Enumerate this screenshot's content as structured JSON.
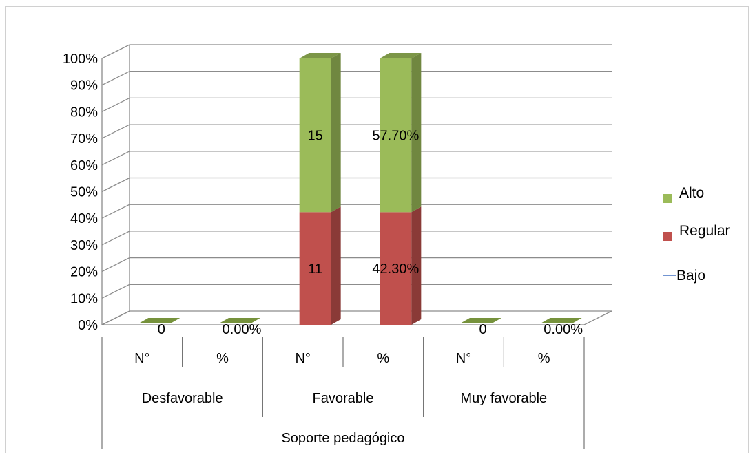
{
  "chart_data": {
    "type": "bar",
    "stacked": true,
    "percent_stacked": true,
    "three_d": true,
    "title": "",
    "xlabel": "",
    "ylabel": "",
    "ylim": [
      0,
      100
    ],
    "y_ticks": [
      "0%",
      "10%",
      "20%",
      "30%",
      "40%",
      "50%",
      "60%",
      "70%",
      "80%",
      "90%",
      "100%"
    ],
    "grid": true,
    "legend_position": "right",
    "categories": [
      "N°",
      "%",
      "N°",
      "%",
      "N°",
      "%"
    ],
    "category_groups": [
      "Desfavorable",
      "Favorable",
      "Muy favorable"
    ],
    "outer_group": "Soporte pedagógico",
    "series": [
      {
        "name": "Bajo",
        "values": [
          0,
          0,
          0,
          0,
          0,
          0
        ],
        "color": "#4472c4"
      },
      {
        "name": "Regular",
        "values": [
          0,
          0,
          11,
          42.3,
          0,
          0
        ],
        "color": "#c0504d",
        "labels": [
          "",
          "",
          "11",
          "42.30%",
          "",
          ""
        ]
      },
      {
        "name": "Alto",
        "values": [
          0,
          0,
          15,
          57.7,
          0,
          0
        ],
        "color": "#9bbb59",
        "labels": [
          "0",
          "0.00%",
          "15",
          "57.70%",
          "0",
          "0.00%"
        ]
      }
    ]
  }
}
